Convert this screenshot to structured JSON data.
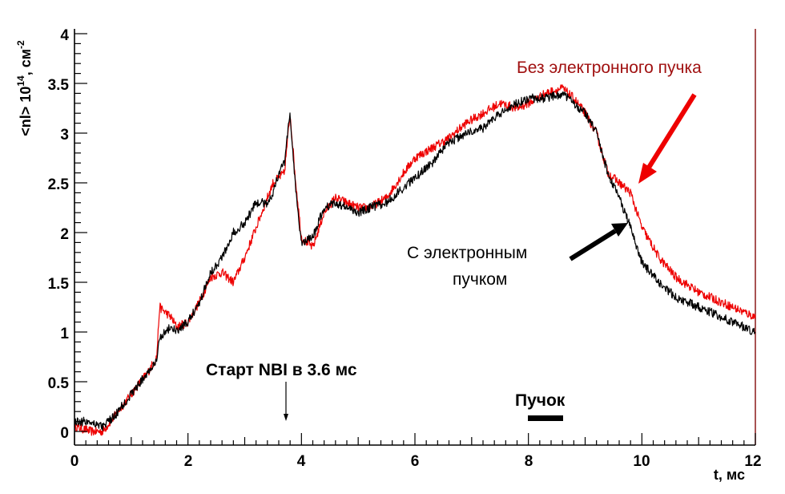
{
  "chart_data": {
    "type": "line",
    "xlabel": "t, мс",
    "ylabel": "<nl> 10^14 , см^-2",
    "ylabel_parts": {
      "base": "<nl> 10",
      "exp1": "14",
      "mid": ", см",
      "exp2": "-2"
    },
    "xlim": [
      0,
      12
    ],
    "ylim": [
      -0.1,
      4.1
    ],
    "x_ticks": [
      "0",
      "2",
      "4",
      "6",
      "8",
      "10",
      "12"
    ],
    "y_ticks": [
      "0",
      "0.5",
      "1",
      "1.5",
      "2",
      "2.5",
      "3",
      "3.5",
      "4"
    ],
    "grid": false,
    "series": [
      {
        "name": "Без электронного пучка",
        "color": "#ee0000",
        "x": [
          0,
          0.3,
          0.5,
          0.7,
          0.9,
          1.1,
          1.3,
          1.45,
          1.5,
          1.6,
          1.7,
          1.8,
          2.0,
          2.2,
          2.4,
          2.6,
          2.8,
          3.0,
          3.2,
          3.4,
          3.5,
          3.6,
          3.7,
          3.8,
          3.9,
          4.0,
          4.2,
          4.4,
          4.6,
          4.8,
          5.0,
          5.2,
          5.5,
          5.8,
          6.0,
          6.3,
          6.6,
          6.9,
          7.2,
          7.5,
          7.8,
          8.0,
          8.3,
          8.6,
          8.8,
          9.0,
          9.2,
          9.4,
          9.6,
          9.8,
          10.0,
          10.3,
          10.6,
          11.0,
          11.4,
          11.8,
          12.0
        ],
        "y": [
          0.05,
          0.0,
          0.0,
          0.15,
          0.3,
          0.45,
          0.6,
          0.75,
          1.25,
          1.2,
          1.15,
          1.05,
          1.1,
          1.3,
          1.55,
          1.6,
          1.5,
          1.75,
          2.05,
          2.35,
          2.5,
          2.55,
          2.6,
          3.2,
          2.5,
          1.95,
          1.85,
          2.2,
          2.35,
          2.3,
          2.25,
          2.25,
          2.35,
          2.6,
          2.75,
          2.85,
          2.95,
          3.1,
          3.2,
          3.3,
          3.25,
          3.3,
          3.4,
          3.45,
          3.35,
          3.2,
          3.0,
          2.6,
          2.5,
          2.4,
          2.05,
          1.75,
          1.55,
          1.4,
          1.3,
          1.2,
          1.15
        ]
      },
      {
        "name": "С электронным пучком",
        "color": "#000000",
        "x": [
          0,
          0.3,
          0.5,
          0.7,
          0.9,
          1.1,
          1.3,
          1.45,
          1.5,
          1.6,
          1.7,
          1.8,
          2.0,
          2.2,
          2.4,
          2.6,
          2.8,
          3.0,
          3.2,
          3.4,
          3.5,
          3.6,
          3.7,
          3.8,
          3.9,
          4.0,
          4.2,
          4.4,
          4.6,
          4.8,
          5.0,
          5.2,
          5.5,
          5.8,
          6.0,
          6.3,
          6.6,
          6.9,
          7.2,
          7.5,
          7.8,
          8.0,
          8.3,
          8.6,
          8.8,
          9.0,
          9.2,
          9.4,
          9.6,
          9.8,
          10.0,
          10.3,
          10.6,
          11.0,
          11.4,
          11.8,
          12.0
        ],
        "y": [
          0.1,
          0.1,
          0.05,
          0.15,
          0.3,
          0.45,
          0.6,
          0.7,
          0.95,
          1.0,
          1.05,
          1.0,
          1.1,
          1.3,
          1.6,
          1.75,
          2.0,
          2.1,
          2.3,
          2.3,
          2.4,
          2.6,
          2.7,
          3.2,
          2.4,
          1.9,
          1.95,
          2.25,
          2.3,
          2.25,
          2.2,
          2.25,
          2.3,
          2.45,
          2.55,
          2.7,
          2.9,
          3.0,
          3.05,
          3.2,
          3.3,
          3.35,
          3.35,
          3.4,
          3.3,
          3.2,
          3.0,
          2.6,
          2.35,
          2.05,
          1.7,
          1.5,
          1.35,
          1.25,
          1.15,
          1.05,
          1.0
        ]
      }
    ],
    "annotations": {
      "red_label": "Без электронного пучка",
      "black_label_line1": "С электронным",
      "black_label_line2": "пучком",
      "nbi_label": "Старт NBI в 3.6 мс",
      "beam_label": "Пучок",
      "nbi_time": 3.6,
      "beam_interval": [
        8.0,
        8.6
      ]
    },
    "colors": {
      "red": "#ee0000",
      "red_text": "#a01010",
      "black": "#000000"
    }
  }
}
